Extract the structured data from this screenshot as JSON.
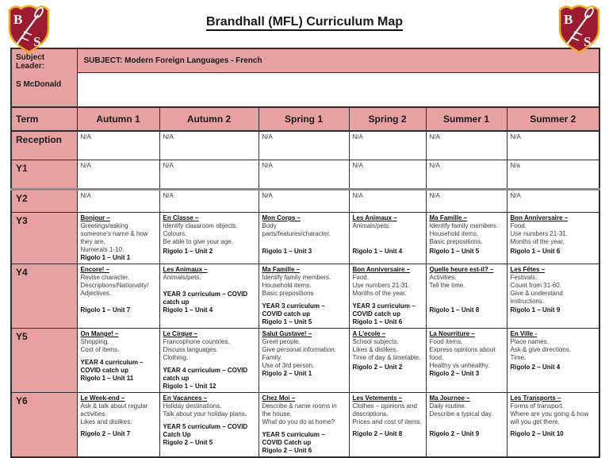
{
  "page": {
    "title": "Brandhall (MFL) Curriculum Map"
  },
  "colors": {
    "pink": "#e7a1a0",
    "maroon": "#9b1b30",
    "gold": "#f0a81e"
  },
  "logo": {
    "letter_top": "B",
    "letter_bottom": "S"
  },
  "leader": {
    "label": "Subject Leader:",
    "name": "S McDonald"
  },
  "subject_banner": "SUBJECT: Modern Foreign Languages - French",
  "term_header": {
    "label": "Term",
    "terms": [
      "Autumn 1",
      "Autumn 2",
      "Spring 1",
      "Spring 2",
      "Summer 1",
      "Summer 2"
    ]
  },
  "rows": [
    {
      "label": "Reception",
      "cells": [
        {
          "lines": [
            "N/A"
          ]
        },
        {
          "lines": [
            "N/A"
          ]
        },
        {
          "lines": [
            "N/A"
          ]
        },
        {
          "lines": [
            "N/A"
          ]
        },
        {
          "lines": [
            "N/A"
          ]
        },
        {
          "lines": [
            "N/A"
          ]
        }
      ]
    },
    {
      "label": "Y1",
      "cells": [
        {
          "lines": [
            "N/A"
          ]
        },
        {
          "lines": [
            "N/A"
          ]
        },
        {
          "lines": [
            "N/A"
          ]
        },
        {
          "lines": [
            "N/A"
          ]
        },
        {
          "lines": [
            "N/A"
          ]
        },
        {
          "lines": [
            "N/a"
          ]
        }
      ]
    },
    {
      "label": "Y2",
      "cells": [
        {
          "lines": [
            "N/A"
          ]
        },
        {
          "lines": [
            "N/A"
          ]
        },
        {
          "lines": [
            "N/A"
          ]
        },
        {
          "lines": [
            "N/A"
          ]
        },
        {
          "lines": [
            "N/A"
          ]
        },
        {
          "lines": [
            "N/A"
          ]
        }
      ]
    },
    {
      "label": "Y3",
      "cells": [
        {
          "title": "Bonjour –",
          "lines": [
            "Greetings/asking someone's name & how they are.",
            "Numerals 1-10."
          ],
          "unit": "Rigolo 1 – Unit 1"
        },
        {
          "title": "En Classe –",
          "lines": [
            "Identify classroom objects.",
            "Colours.",
            "Be able to give your age."
          ],
          "unit": "Rigolo 1 – Unit 2"
        },
        {
          "title": "Mon Corps –",
          "lines": [
            "Body parts/features/character."
          ],
          "unit": "Rigolo 1 – Unit 3"
        },
        {
          "title": "Les Animaux –",
          "lines": [
            "Animals/pets."
          ],
          "unit": "Rigolo 1 – Unit 4"
        },
        {
          "title": "Ma Famille –",
          "lines": [
            "Identify family members.",
            "Household items.",
            "Basic prepositions."
          ],
          "unit": "Rigolo 1 – Unit 5"
        },
        {
          "title": "Bon Anniversaire –",
          "lines": [
            "Food.",
            "Use numbers 21-31.",
            "Months of the year."
          ],
          "unit": "Rigolo 1 – Unit 6"
        }
      ]
    },
    {
      "label": "Y4",
      "cells": [
        {
          "title": "Encore! –",
          "lines": [
            "Revise character.",
            "Descriptions/Nationality/ Adjectives."
          ],
          "unit": "Rigolo 1 – Unit 7"
        },
        {
          "title": "Les Animaux –",
          "lines": [
            "Animals/pets."
          ],
          "covid": "YEAR 3 curriculum – COVID catch up",
          "unit": "Rigolo 1 – Unit 4"
        },
        {
          "title": "Ma Famille –",
          "lines": [
            "Identify family members.",
            "Household items.",
            "Basic prepositions"
          ],
          "covid": "YEAR 3 curriculum – COVID catch up",
          "unit": "Rigolo 1 – Unit 5"
        },
        {
          "title": "Bon Anniversaire –",
          "lines": [
            "Food.",
            "Use numbers 21-31.",
            "Months of the year."
          ],
          "covid": "YEAR 3 curriculum – COVID catch up",
          "unit": "Rigolo 1 – Unit 6"
        },
        {
          "title": "Quelle heure est-il? –",
          "lines": [
            "Activities.",
            "Tell the time."
          ],
          "unit": "Rigolo 1 – Unit 8"
        },
        {
          "title": "Les Fêtes –",
          "lines": [
            "Festivals.",
            "Count from 31-60.",
            "Give & understand instructions."
          ],
          "unit": "Rigolo 1 – Unit 9"
        }
      ]
    },
    {
      "label": "Y5",
      "cells": [
        {
          "title": "On Mange! –",
          "lines": [
            "Shopping.",
            "Cost of items."
          ],
          "covid": "YEAR 4 curriculum – COVID catch up",
          "unit": "Rigolo 1 – Unit 11"
        },
        {
          "title": "Le Cirque –",
          "lines": [
            "Francophone countries.",
            "Discuss languages.",
            "Clothing."
          ],
          "covid": "YEAR 4 curriculum – COVID catch up",
          "unit": "Rigolo 1 – Unit 12"
        },
        {
          "title": "Salut Gustave! –",
          "lines": [
            "Greet people.",
            "Give personal information.",
            "Family.",
            "Use of 3rd person."
          ],
          "unit": "Rigolo 2 – Unit 1"
        },
        {
          "title": "A L'ecole –",
          "lines": [
            "School subjects.",
            "Likes & dislikes.",
            "Time of day & timetable."
          ],
          "unit": "Rigolo 2 – Unit 2"
        },
        {
          "title": "La Nourriture –",
          "lines": [
            "Food items.",
            "Express opinions about food.",
            "Healthy vs unhealthy."
          ],
          "unit": "Rigolo 2 – Unit 3"
        },
        {
          "title": "En Ville -",
          "lines": [
            "Place names.",
            "Ask & give directions.",
            "Time."
          ],
          "unit": "Rigolo 2 – Unit 4"
        }
      ]
    },
    {
      "label": "Y6",
      "cells": [
        {
          "title": "Le Week-end –",
          "lines": [
            "Ask & talk about regular activities.",
            "Likes and dislikes."
          ],
          "unit": "Rigolo 2 – Unit 7"
        },
        {
          "title": "En Vacances –",
          "lines": [
            "Holiday destinations.",
            "Talk about your holiday plans."
          ],
          "covid": "YEAR 5 curriculum – COVID Catch Up",
          "unit": "Rigolo 2 – Unit 5"
        },
        {
          "title": "Chez Moi –",
          "lines": [
            "Describe & name rooms in the house.",
            "What do you do at home?"
          ],
          "covid": "YEAR 5 curriculum – COVID Catch up",
          "unit": "Rigolo 2 – Unit 6"
        },
        {
          "title": "Les Vetements –",
          "lines": [
            "Clothes – opinions and descriptions.",
            "Prices and cost of items."
          ],
          "unit": "Rigolo 2 – Unit 8"
        },
        {
          "title": "Ma Journee –",
          "lines": [
            "Daily routine.",
            "Describe a typical day."
          ],
          "unit": "Rigolo 2 – Unit 9"
        },
        {
          "title": "Les Transports –",
          "lines": [
            "Forms of transport.",
            "Where are you going & how will you get there."
          ],
          "unit": "Rigolo 2 – Unit 10"
        }
      ]
    }
  ]
}
